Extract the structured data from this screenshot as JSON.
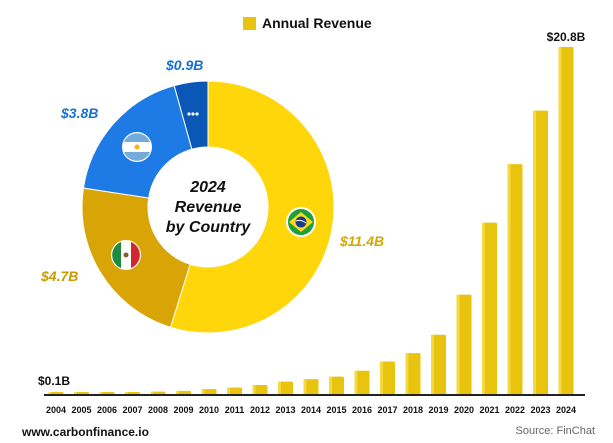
{
  "chart_data": [
    {
      "type": "bar",
      "legend": "Annual Revenue",
      "categories": [
        "2004",
        "2005",
        "2006",
        "2007",
        "2008",
        "2009",
        "2010",
        "2011",
        "2012",
        "2013",
        "2014",
        "2015",
        "2016",
        "2017",
        "2018",
        "2019",
        "2020",
        "2021",
        "2022",
        "2023",
        "2024"
      ],
      "values": [
        0.1,
        0.1,
        0.1,
        0.15,
        0.2,
        0.25,
        0.35,
        0.45,
        0.6,
        0.8,
        0.95,
        1.1,
        1.45,
        2.0,
        2.5,
        3.6,
        6.0,
        10.3,
        13.8,
        17.0,
        20.8
      ],
      "labeled": [
        {
          "year": "2004",
          "text": "$0.1B"
        },
        {
          "year": "2024",
          "text": "$20.8B"
        }
      ],
      "ylim": [
        0,
        20.8
      ],
      "legend_position": "top-center",
      "color": "#E8C40F",
      "grid": false
    },
    {
      "type": "pie",
      "title": "2024 Revenue by Country",
      "title_lines": [
        "2024",
        "Revenue",
        "by Country"
      ],
      "slices": [
        {
          "label": "$11.4B",
          "value": 11.4,
          "flag": "brazil-flag-icon",
          "color": "#FFD60A",
          "label_color": "#D4A800"
        },
        {
          "label": "$4.7B",
          "value": 4.7,
          "flag": "mexico-flag-icon",
          "color": "#D9A406",
          "label_color": "#C99A00"
        },
        {
          "label": "$3.8B",
          "value": 3.8,
          "flag": "argentina-flag-icon",
          "color": "#1E7BE6",
          "label_color": "#1670D4"
        },
        {
          "label": "$0.9B",
          "value": 0.9,
          "flag": "more-icon",
          "color": "#0A57B8",
          "label_color": "#1670D4"
        }
      ]
    }
  ],
  "footer": {
    "website": "www.carbonfinance.io",
    "source": "Source: FinChat"
  }
}
